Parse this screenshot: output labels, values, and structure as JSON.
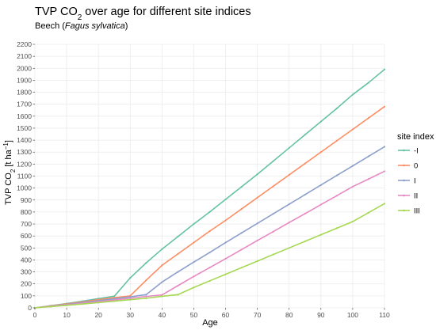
{
  "chart_data": {
    "type": "line",
    "title": "TVP CO2 over age for different site indices",
    "title_main": "TVP CO",
    "title_sub": "2",
    "title_rest": " over age for different site indices",
    "subtitle_prefix": "Beech (",
    "subtitle_italic": "Fagus sylvatica",
    "subtitle_suffix": ")",
    "xlabel": "Age",
    "ylabel": "TVP CO2 [t ha^-1]",
    "ylabel_parts": {
      "a": "TVP CO",
      "sub": "2",
      "b": " [t ha",
      "sup": "−1",
      "c": "]"
    },
    "xlim": [
      0,
      110
    ],
    "ylim": [
      0,
      2200
    ],
    "x_ticks": [
      0,
      10,
      20,
      30,
      40,
      50,
      60,
      70,
      80,
      90,
      100,
      110
    ],
    "y_ticks": [
      0,
      100,
      200,
      300,
      400,
      500,
      600,
      700,
      800,
      900,
      1000,
      1100,
      1200,
      1300,
      1400,
      1500,
      1600,
      1700,
      1800,
      1900,
      2000,
      2100,
      2200
    ],
    "grid": true,
    "legend": {
      "title": "site index",
      "position": "right"
    },
    "series": [
      {
        "name": "-I",
        "color": "#66c2a5",
        "x": [
          0,
          5,
          10,
          15,
          20,
          25,
          30,
          35,
          40,
          45,
          50,
          55,
          60,
          65,
          70,
          75,
          80,
          85,
          90,
          95,
          100,
          105,
          110
        ],
        "y": [
          0,
          18,
          36,
          56,
          77,
          97,
          250,
          375,
          490,
          595,
          700,
          800,
          905,
          1010,
          1115,
          1225,
          1335,
          1445,
          1555,
          1665,
          1780,
          1880,
          1990
        ]
      },
      {
        "name": "0",
        "color": "#fc8d62",
        "x": [
          0,
          5,
          10,
          15,
          20,
          25,
          30,
          35,
          40,
          45,
          50,
          55,
          60,
          65,
          70,
          75,
          80,
          85,
          90,
          95,
          100,
          105,
          110
        ],
        "y": [
          0,
          16,
          33,
          50,
          68,
          85,
          100,
          230,
          355,
          450,
          545,
          640,
          730,
          825,
          920,
          1015,
          1110,
          1205,
          1300,
          1395,
          1490,
          1585,
          1680
        ]
      },
      {
        "name": "I",
        "color": "#8da0cb",
        "x": [
          0,
          5,
          10,
          15,
          20,
          25,
          30,
          35,
          40,
          45,
          50,
          55,
          60,
          65,
          70,
          75,
          80,
          85,
          90,
          95,
          100,
          105,
          110
        ],
        "y": [
          0,
          14,
          29,
          44,
          60,
          75,
          92,
          110,
          215,
          300,
          382,
          462,
          545,
          625,
          705,
          785,
          865,
          945,
          1025,
          1105,
          1185,
          1265,
          1345
        ]
      },
      {
        "name": "II",
        "color": "#e78ac3",
        "x": [
          0,
          5,
          10,
          15,
          20,
          25,
          30,
          35,
          40,
          45,
          50,
          55,
          60,
          65,
          70,
          75,
          80,
          85,
          90,
          95,
          100,
          105,
          110
        ],
        "y": [
          0,
          12,
          25,
          38,
          52,
          65,
          80,
          95,
          108,
          185,
          262,
          336,
          410,
          486,
          562,
          636,
          712,
          786,
          862,
          936,
          1012,
          1075,
          1140
        ]
      },
      {
        "name": "III",
        "color": "#a6d854",
        "x": [
          0,
          5,
          10,
          15,
          20,
          25,
          30,
          35,
          40,
          45,
          50,
          55,
          60,
          65,
          70,
          75,
          80,
          85,
          90,
          95,
          100,
          105,
          110
        ],
        "y": [
          0,
          10,
          21,
          32,
          44,
          56,
          68,
          80,
          96,
          110,
          170,
          225,
          280,
          335,
          390,
          445,
          500,
          555,
          610,
          665,
          720,
          795,
          870
        ]
      }
    ]
  }
}
